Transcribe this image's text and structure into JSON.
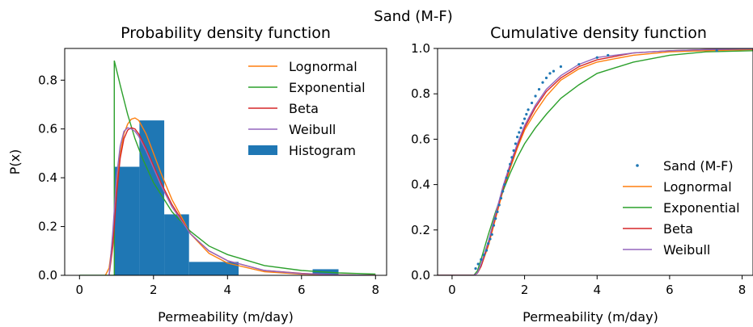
{
  "figure": {
    "suptitle": "Sand (M-F)"
  },
  "chart_data": [
    {
      "type": "line",
      "title": "Probability density function",
      "xlabel": "Permeability (m/day)",
      "ylabel": "P(x)",
      "xlim": [
        -0.4,
        8.3
      ],
      "ylim": [
        0,
        0.93
      ],
      "xticks": [
        "0",
        "2",
        "4",
        "6",
        "8"
      ],
      "yticks": [
        "0.0",
        "0.2",
        "0.4",
        "0.6",
        "0.8"
      ],
      "legend_position": "top-right",
      "histogram": {
        "name": "Histogram",
        "color": "#1f77b4",
        "bins": [
          {
            "x0": 0.95,
            "x1": 1.62,
            "value": 0.445
          },
          {
            "x0": 1.62,
            "x1": 2.29,
            "value": 0.635
          },
          {
            "x0": 2.29,
            "x1": 2.96,
            "value": 0.25
          },
          {
            "x0": 2.96,
            "x1": 4.3,
            "value": 0.055
          },
          {
            "x0": 4.3,
            "x1": 6.3,
            "value": 0
          },
          {
            "x0": 6.3,
            "x1": 7.0,
            "value": 0.025
          }
        ]
      },
      "series": [
        {
          "name": "Lognormal",
          "color": "#ff7f0e",
          "x": [
            0.7,
            0.8,
            0.9,
            1.0,
            1.1,
            1.2,
            1.3,
            1.4,
            1.5,
            1.6,
            1.8,
            2.0,
            2.2,
            2.5,
            3.0,
            3.5,
            4.0,
            5.0,
            6.0,
            7.0,
            8.0
          ],
          "y": [
            0.0,
            0.03,
            0.15,
            0.35,
            0.5,
            0.58,
            0.62,
            0.64,
            0.645,
            0.635,
            0.58,
            0.5,
            0.42,
            0.31,
            0.17,
            0.09,
            0.05,
            0.015,
            0.005,
            0.002,
            0.0
          ]
        },
        {
          "name": "Exponential",
          "color": "#2ca02c",
          "x": [
            0.0,
            0.94,
            0.94,
            1.1,
            1.3,
            1.5,
            1.7,
            2.0,
            2.5,
            3.0,
            3.5,
            4.0,
            5.0,
            6.0,
            7.0,
            8.0
          ],
          "y": [
            0.0,
            0.0,
            0.88,
            0.78,
            0.66,
            0.56,
            0.48,
            0.38,
            0.26,
            0.18,
            0.12,
            0.085,
            0.04,
            0.02,
            0.01,
            0.005
          ]
        },
        {
          "name": "Beta",
          "color": "#d62728",
          "x": [
            0.8,
            0.9,
            1.0,
            1.1,
            1.2,
            1.3,
            1.4,
            1.5,
            1.6,
            1.8,
            2.0,
            2.2,
            2.5,
            3.0,
            3.5,
            4.0,
            5.0,
            6.0,
            7.0,
            8.0
          ],
          "y": [
            0.0,
            0.12,
            0.33,
            0.48,
            0.56,
            0.595,
            0.605,
            0.6,
            0.58,
            0.52,
            0.45,
            0.38,
            0.29,
            0.17,
            0.1,
            0.06,
            0.02,
            0.008,
            0.002,
            0.0
          ]
        },
        {
          "name": "Weibull",
          "color": "#9467bd",
          "x": [
            0.8,
            0.9,
            1.0,
            1.1,
            1.2,
            1.3,
            1.4,
            1.5,
            1.6,
            1.8,
            2.0,
            2.2,
            2.5,
            3.0,
            3.5,
            4.0,
            5.0,
            6.0,
            7.0,
            8.0
          ],
          "y": [
            0.0,
            0.18,
            0.4,
            0.53,
            0.59,
            0.605,
            0.6,
            0.59,
            0.57,
            0.51,
            0.44,
            0.37,
            0.28,
            0.17,
            0.1,
            0.06,
            0.02,
            0.007,
            0.002,
            0.0
          ]
        }
      ]
    },
    {
      "type": "line",
      "title": "Cumulative density function",
      "xlabel": "Permeability (m/day)",
      "ylabel": "",
      "xlim": [
        -0.4,
        8.3
      ],
      "ylim": [
        0,
        1.0
      ],
      "xticks": [
        "0",
        "2",
        "4",
        "6",
        "8"
      ],
      "yticks": [
        "0.0",
        "0.2",
        "0.4",
        "0.6",
        "0.8",
        "1.0"
      ],
      "legend_position": "lower-right",
      "scatter": {
        "name": "Sand (M-F)",
        "color": "#1f77b4",
        "x": [
          0.65,
          0.72,
          0.8,
          0.88,
          0.95,
          1.0,
          1.05,
          1.1,
          1.15,
          1.2,
          1.25,
          1.3,
          1.35,
          1.4,
          1.45,
          1.5,
          1.55,
          1.6,
          1.65,
          1.7,
          1.75,
          1.8,
          1.85,
          1.9,
          1.95,
          2.0,
          2.05,
          2.1,
          2.2,
          2.3,
          2.4,
          2.5,
          2.6,
          2.7,
          2.8,
          3.0,
          3.5,
          4.0,
          4.3,
          7.3
        ],
        "y": [
          0.03,
          0.05,
          0.07,
          0.09,
          0.11,
          0.14,
          0.16,
          0.18,
          0.22,
          0.25,
          0.28,
          0.31,
          0.34,
          0.37,
          0.4,
          0.43,
          0.46,
          0.49,
          0.52,
          0.55,
          0.58,
          0.61,
          0.63,
          0.65,
          0.67,
          0.69,
          0.71,
          0.73,
          0.76,
          0.79,
          0.82,
          0.85,
          0.87,
          0.89,
          0.9,
          0.92,
          0.93,
          0.96,
          0.97,
          0.99
        ]
      },
      "series": [
        {
          "name": "Lognormal",
          "color": "#ff7f0e",
          "x": [
            -0.4,
            0.6,
            0.7,
            0.8,
            1.0,
            1.2,
            1.4,
            1.6,
            1.8,
            2.0,
            2.3,
            2.6,
            3.0,
            3.5,
            4.0,
            5.0,
            6.0,
            7.0,
            8.3
          ],
          "y": [
            0.0,
            0.0,
            0.01,
            0.04,
            0.13,
            0.25,
            0.37,
            0.47,
            0.56,
            0.64,
            0.72,
            0.79,
            0.86,
            0.91,
            0.94,
            0.97,
            0.985,
            0.99,
            0.995
          ]
        },
        {
          "name": "Exponential",
          "color": "#2ca02c",
          "x": [
            -0.4,
            0.6,
            0.7,
            0.8,
            1.0,
            1.2,
            1.4,
            1.6,
            1.8,
            2.0,
            2.3,
            2.6,
            3.0,
            3.5,
            4.0,
            5.0,
            6.0,
            7.0,
            8.3
          ],
          "y": [
            0.0,
            0.0,
            0.02,
            0.07,
            0.18,
            0.28,
            0.37,
            0.45,
            0.52,
            0.58,
            0.65,
            0.71,
            0.78,
            0.84,
            0.89,
            0.94,
            0.97,
            0.985,
            0.99
          ]
        },
        {
          "name": "Beta",
          "color": "#d62728",
          "x": [
            -0.4,
            0.6,
            0.7,
            0.8,
            1.0,
            1.2,
            1.4,
            1.6,
            1.8,
            2.0,
            2.3,
            2.6,
            3.0,
            3.5,
            4.0,
            5.0,
            6.0,
            7.0,
            8.3
          ],
          "y": [
            0.0,
            0.0,
            0.01,
            0.04,
            0.14,
            0.26,
            0.38,
            0.48,
            0.57,
            0.65,
            0.74,
            0.81,
            0.87,
            0.92,
            0.95,
            0.98,
            0.99,
            0.995,
            0.998
          ]
        },
        {
          "name": "Weibull",
          "color": "#9467bd",
          "x": [
            -0.4,
            0.6,
            0.7,
            0.8,
            1.0,
            1.2,
            1.4,
            1.6,
            1.8,
            2.0,
            2.3,
            2.6,
            3.0,
            3.5,
            4.0,
            5.0,
            6.0,
            7.0,
            8.3
          ],
          "y": [
            0.0,
            0.0,
            0.01,
            0.05,
            0.15,
            0.27,
            0.39,
            0.49,
            0.58,
            0.66,
            0.75,
            0.82,
            0.88,
            0.93,
            0.96,
            0.98,
            0.99,
            0.995,
            0.998
          ]
        }
      ]
    }
  ]
}
